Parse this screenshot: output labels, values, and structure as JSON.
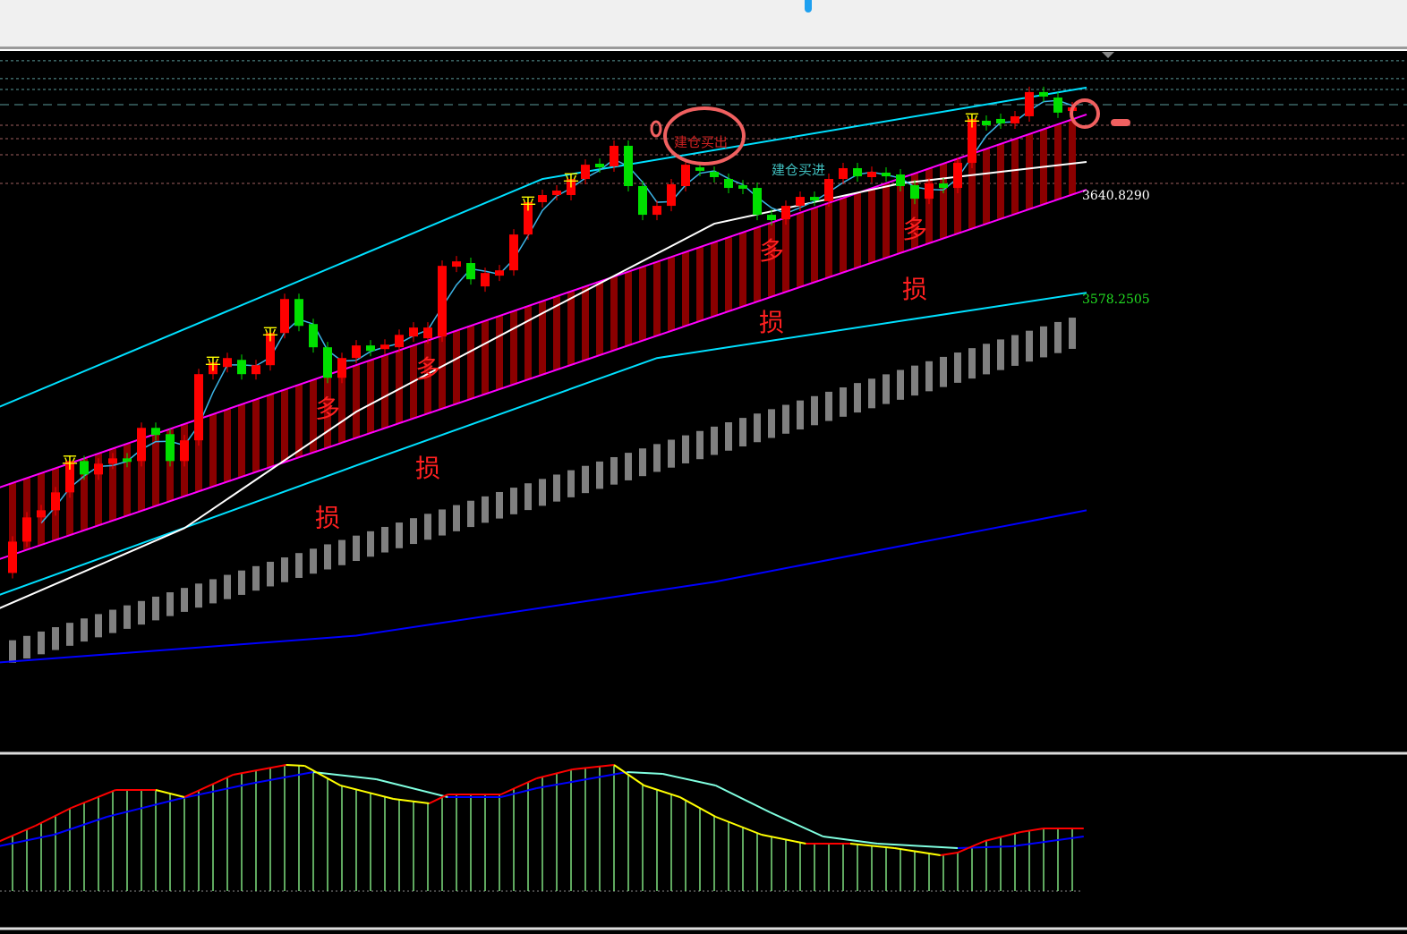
{
  "colors": {
    "up": "#ff0000",
    "down": "#00e000",
    "channel_fill": "#8b0000",
    "channel_edge": "#ff00ff",
    "outer_band": "#00e0ff",
    "ma_white": "#ffffff",
    "ma_blue": "#0000ff",
    "gray_band": "#808080",
    "macd_fast_up": "#ff0000",
    "macd_fast_down": "#ffff00",
    "macd_slow_up": "#0000ff",
    "macd_slow_down": "#80ffe0",
    "histogram": "#7fe07f"
  },
  "edge_marks": [
    {
      "text": "】",
      "color": "#cc0000"
    },
    {
      "text": "】",
      "color": "#1a9a1a"
    }
  ],
  "price_labels": [
    {
      "text": "3640.8290",
      "color": "#ffffff",
      "price": 3640.829
    },
    {
      "text": "3578.2505",
      "color": "#22dd22",
      "price": 3578.2505
    }
  ],
  "annotations": {
    "sell_open": "建仓买出",
    "buy_open": "建仓买进",
    "long": "多",
    "stop": "损",
    "flat": "平"
  },
  "long_markers": [
    22,
    29,
    53,
    63
  ],
  "stop_markers": [
    {
      "index": 22,
      "price": 3442
    },
    {
      "index": 29,
      "price": 3472
    },
    {
      "index": 53,
      "price": 3560
    },
    {
      "index": 63,
      "price": 3580
    }
  ],
  "flat_markers": [
    4,
    14,
    18,
    36,
    39,
    67
  ],
  "level_lines": [
    3722.9,
    3712.1,
    3705.6,
    3696.4,
    3684.0,
    3675.9,
    3666.2,
    3648.9
  ],
  "chart_data": {
    "type": "candlestick",
    "candles_open_close": [
      [
        3414.0,
        3432.9
      ],
      [
        3432.9,
        3447.5
      ],
      [
        3447.5,
        3451.8
      ],
      [
        3451.8,
        3462.6
      ],
      [
        3462.6,
        3481.5
      ],
      [
        3481.5,
        3473.4
      ],
      [
        3473.4,
        3479.9
      ],
      [
        3479.9,
        3483.1
      ],
      [
        3483.1,
        3481.0
      ],
      [
        3481.5,
        3501.5
      ],
      [
        3501.5,
        3497.2
      ],
      [
        3497.7,
        3481.5
      ],
      [
        3481.5,
        3494.0
      ],
      [
        3494.0,
        3533.9
      ],
      [
        3533.9,
        3540.9
      ],
      [
        3538.2,
        3543.6
      ],
      [
        3542.5,
        3533.9
      ],
      [
        3533.9,
        3539.3
      ],
      [
        3539.3,
        3558.7
      ],
      [
        3558.7,
        3579.2
      ],
      [
        3579.2,
        3563.0
      ],
      [
        3564.1,
        3550.1
      ],
      [
        3550.1,
        3531.7
      ],
      [
        3531.7,
        3543.6
      ],
      [
        3543.6,
        3551.2
      ],
      [
        3551.2,
        3547.9
      ],
      [
        3549.0,
        3551.7
      ],
      [
        3550.1,
        3557.6
      ],
      [
        3556.6,
        3562.0
      ],
      [
        3555.5,
        3562.0
      ],
      [
        3556.6,
        3599.2
      ],
      [
        3598.7,
        3601.9
      ],
      [
        3600.9,
        3591.1
      ],
      [
        3586.8,
        3594.9
      ],
      [
        3593.3,
        3596.5
      ],
      [
        3596.5,
        3618.1
      ],
      [
        3618.1,
        3637.6
      ],
      [
        3637.6,
        3641.9
      ],
      [
        3641.9,
        3644.6
      ],
      [
        3641.9,
        3651.6
      ],
      [
        3651.6,
        3660.2
      ],
      [
        3660.8,
        3658.6
      ],
      [
        3659.2,
        3671.6
      ],
      [
        3671.6,
        3647.3
      ],
      [
        3647.3,
        3630.0
      ],
      [
        3630.0,
        3635.4
      ],
      [
        3635.4,
        3648.4
      ],
      [
        3647.3,
        3660.2
      ],
      [
        3658.6,
        3656.5
      ],
      [
        3655.9,
        3652.7
      ],
      [
        3651.6,
        3646.2
      ],
      [
        3647.8,
        3645.7
      ],
      [
        3646.2,
        3630.0
      ],
      [
        3630.0,
        3626.8
      ],
      [
        3627.3,
        3635.4
      ],
      [
        3635.4,
        3640.8
      ],
      [
        3640.8,
        3638.6
      ],
      [
        3638.1,
        3651.6
      ],
      [
        3651.6,
        3658.1
      ],
      [
        3658.1,
        3653.2
      ],
      [
        3652.7,
        3655.9
      ],
      [
        3655.4,
        3653.2
      ],
      [
        3654.3,
        3647.3
      ],
      [
        3647.8,
        3639.7
      ],
      [
        3639.7,
        3648.9
      ],
      [
        3648.9,
        3646.2
      ],
      [
        3646.2,
        3661.3
      ],
      [
        3661.3,
        3687.8
      ],
      [
        3686.7,
        3684.0
      ],
      [
        3687.8,
        3685.1
      ],
      [
        3685.1,
        3689.4
      ],
      [
        3689.4,
        3704.0
      ],
      [
        3704.0,
        3701.3
      ],
      [
        3700.7,
        3691.6
      ],
      [
        3692.6,
        3694.8
      ]
    ],
    "channel_upper": [
      [
        -1,
        3465.3
      ],
      [
        75,
        3690.5
      ]
    ],
    "channel_lower": [
      [
        -1,
        3422.1
      ],
      [
        75,
        3645.1
      ]
    ],
    "outer_upper": [
      [
        -1,
        3513.9
      ],
      [
        37,
        3651.6
      ],
      [
        75,
        3706.7
      ]
    ],
    "outer_lower": [
      [
        -1,
        3400.5
      ],
      [
        24,
        3478.8
      ],
      [
        45,
        3543.6
      ],
      [
        75,
        3583.0
      ]
    ],
    "ma_white": [
      [
        -1,
        3392.4
      ],
      [
        12,
        3441.0
      ],
      [
        24,
        3511.2
      ],
      [
        37,
        3570.6
      ],
      [
        49,
        3624.6
      ],
      [
        62,
        3648.9
      ],
      [
        75,
        3661.9
      ]
    ],
    "ma_blue": [
      [
        -1,
        3360.0
      ],
      [
        24,
        3376.2
      ],
      [
        49,
        3408.6
      ],
      [
        75,
        3451.8
      ]
    ],
    "gray_band_top": [
      [
        -1,
        3370.8
      ],
      [
        75,
        3570.6
      ]
    ],
    "gray_band_bottom": [
      [
        -1,
        3357.3
      ],
      [
        75,
        3551.7
      ]
    ],
    "macd_fast": [
      [
        -1,
        5.5
      ],
      [
        1.6,
        7.3
      ],
      [
        4.1,
        9.3
      ],
      [
        7.2,
        11.3
      ],
      [
        10,
        11.3
      ],
      [
        12,
        10.5
      ],
      [
        15.4,
        13
      ],
      [
        19.1,
        14.1
      ],
      [
        20.4,
        14
      ],
      [
        22.9,
        11.8
      ],
      [
        26.6,
        10.3
      ],
      [
        29.1,
        9.8
      ],
      [
        30.4,
        10.8
      ],
      [
        34.1,
        10.8
      ],
      [
        36.6,
        12.6
      ],
      [
        39.1,
        13.6
      ],
      [
        42,
        14.1
      ],
      [
        44.1,
        11.8
      ],
      [
        46.6,
        10.5
      ],
      [
        49.1,
        8.3
      ],
      [
        52.3,
        6.3
      ],
      [
        55.4,
        5.3
      ],
      [
        58.5,
        5.3
      ],
      [
        61.6,
        4.8
      ],
      [
        64.8,
        4
      ],
      [
        66,
        4.3
      ],
      [
        67.9,
        5.6
      ],
      [
        70.4,
        6.6
      ],
      [
        72,
        7
      ],
      [
        74.8,
        7
      ]
    ],
    "macd_slow": [
      [
        -1,
        5
      ],
      [
        2.9,
        6.3
      ],
      [
        6.6,
        8.3
      ],
      [
        11.6,
        10.3
      ],
      [
        16.6,
        12
      ],
      [
        21,
        13.3
      ],
      [
        25.4,
        12.5
      ],
      [
        30.4,
        10.5
      ],
      [
        34.1,
        10.5
      ],
      [
        36.6,
        11.5
      ],
      [
        42.9,
        13.3
      ],
      [
        45.4,
        13.1
      ],
      [
        49.1,
        11.8
      ],
      [
        52.9,
        8.8
      ],
      [
        56.6,
        6.1
      ],
      [
        60.4,
        5.3
      ],
      [
        66,
        4.8
      ],
      [
        69.8,
        5
      ],
      [
        74.8,
        6.1
      ]
    ]
  }
}
